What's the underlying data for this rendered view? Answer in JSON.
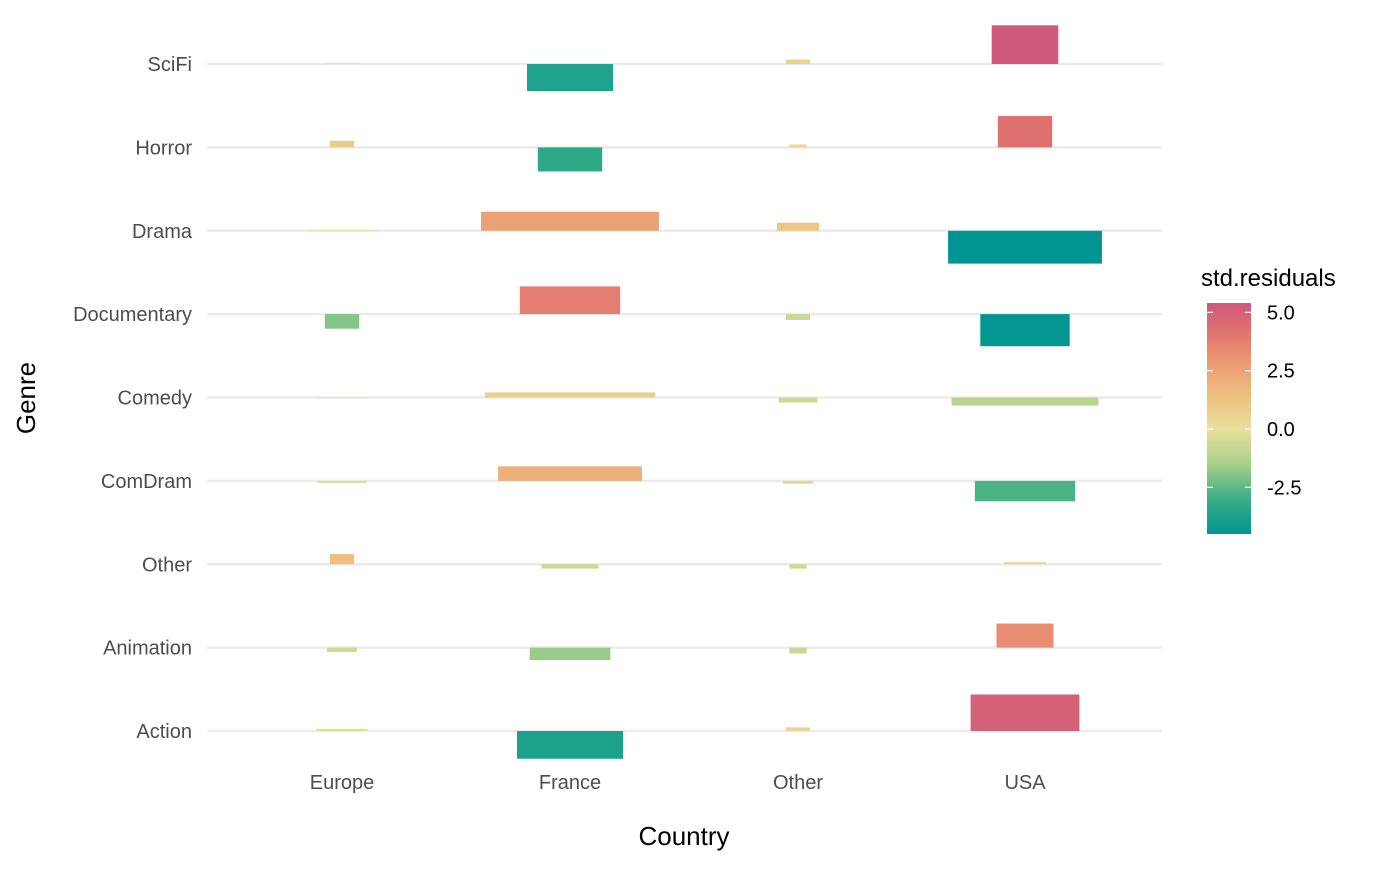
{
  "chart_data": {
    "type": "bar",
    "description_type": "residual bar plot (grouped horizontal strips per genre, bar width proportional to expected count, height to residual)",
    "xlabel": "Country",
    "ylabel": "Genre",
    "countries": [
      "Europe",
      "France",
      "Other",
      "USA"
    ],
    "genres": [
      "Action",
      "Animation",
      "Other",
      "ComDram",
      "Comedy",
      "Documentary",
      "Drama",
      "Horror",
      "SciFi"
    ],
    "legend": {
      "title": "std.residuals",
      "ticks": [
        5.0,
        2.5,
        0.0,
        -2.5
      ],
      "tick_labels": [
        "5.0",
        "2.5",
        "0.0",
        "-2.5"
      ],
      "range": [
        -4.5,
        5.4
      ],
      "position": "right",
      "colors": [
        {
          "value": -4.5,
          "color": "#009593"
        },
        {
          "value": -3.0,
          "color": "#3aae84"
        },
        {
          "value": -1.5,
          "color": "#a8d18a"
        },
        {
          "value": 0.0,
          "color": "#e8e09b"
        },
        {
          "value": 1.5,
          "color": "#eebd7e"
        },
        {
          "value": 3.0,
          "color": "#eb9672"
        },
        {
          "value": 4.2,
          "color": "#e0726f"
        },
        {
          "value": 5.4,
          "color": "#d0587d"
        }
      ]
    },
    "series": [
      {
        "country": "Europe",
        "genre": "Action",
        "residual": 0.3,
        "expected": 9
      },
      {
        "country": "France",
        "genre": "Action",
        "residual": -3.8,
        "expected": 38
      },
      {
        "country": "Other",
        "genre": "Action",
        "residual": 0.5,
        "expected": 2
      },
      {
        "country": "USA",
        "genre": "Action",
        "residual": 5.0,
        "expected": 40
      },
      {
        "country": "Europe",
        "genre": "Animation",
        "residual": -0.6,
        "expected": 3
      },
      {
        "country": "France",
        "genre": "Animation",
        "residual": -1.7,
        "expected": 22
      },
      {
        "country": "Other",
        "genre": "Animation",
        "residual": -0.8,
        "expected": 1
      },
      {
        "country": "USA",
        "genre": "Animation",
        "residual": 3.3,
        "expected": 11
      },
      {
        "country": "Europe",
        "genre": "Other",
        "residual": 1.4,
        "expected": 2
      },
      {
        "country": "France",
        "genre": "Other",
        "residual": -0.6,
        "expected": 11
      },
      {
        "country": "Other",
        "genre": "Other",
        "residual": -0.6,
        "expected": 1
      },
      {
        "country": "USA",
        "genre": "Other",
        "residual": 0.3,
        "expected": 6
      },
      {
        "country": "Europe",
        "genre": "ComDram",
        "residual": -0.3,
        "expected": 8
      },
      {
        "country": "France",
        "genre": "ComDram",
        "residual": 2.0,
        "expected": 70
      },
      {
        "country": "Other",
        "genre": "ComDram",
        "residual": -0.4,
        "expected": 3
      },
      {
        "country": "USA",
        "genre": "ComDram",
        "residual": -2.8,
        "expected": 34
      },
      {
        "country": "Europe",
        "genre": "Comedy",
        "residual": 0.0,
        "expected": 8
      },
      {
        "country": "France",
        "genre": "Comedy",
        "residual": 0.7,
        "expected": 98
      },
      {
        "country": "Other",
        "genre": "Comedy",
        "residual": -0.7,
        "expected": 5
      },
      {
        "country": "USA",
        "genre": "Comedy",
        "residual": -1.1,
        "expected": 73
      },
      {
        "country": "Europe",
        "genre": "Documentary",
        "residual": -2.0,
        "expected": 4
      },
      {
        "country": "France",
        "genre": "Documentary",
        "residual": 3.8,
        "expected": 34
      },
      {
        "country": "Other",
        "genre": "Documentary",
        "residual": -0.8,
        "expected": 2
      },
      {
        "country": "USA",
        "genre": "Documentary",
        "residual": -4.4,
        "expected": 27
      },
      {
        "country": "Europe",
        "genre": "Drama",
        "residual": 0.1,
        "expected": 17
      },
      {
        "country": "France",
        "genre": "Drama",
        "residual": 2.6,
        "expected": 107
      },
      {
        "country": "Other",
        "genre": "Drama",
        "residual": 1.1,
        "expected": 6
      },
      {
        "country": "USA",
        "genre": "Drama",
        "residual": -4.5,
        "expected": 80
      },
      {
        "country": "Europe",
        "genre": "Horror",
        "residual": 0.9,
        "expected": 2
      },
      {
        "country": "France",
        "genre": "Horror",
        "residual": -3.3,
        "expected": 14
      },
      {
        "country": "Other",
        "genre": "Horror",
        "residual": 0.4,
        "expected": 1
      },
      {
        "country": "USA",
        "genre": "Horror",
        "residual": 4.3,
        "expected": 10
      },
      {
        "country": "Europe",
        "genre": "SciFi",
        "residual": 0.1,
        "expected": 4
      },
      {
        "country": "France",
        "genre": "SciFi",
        "residual": -3.7,
        "expected": 25
      },
      {
        "country": "Other",
        "genre": "SciFi",
        "residual": 0.6,
        "expected": 2
      },
      {
        "country": "USA",
        "genre": "SciFi",
        "residual": 5.3,
        "expected": 15
      }
    ],
    "grid": true,
    "legend_position": "right"
  }
}
